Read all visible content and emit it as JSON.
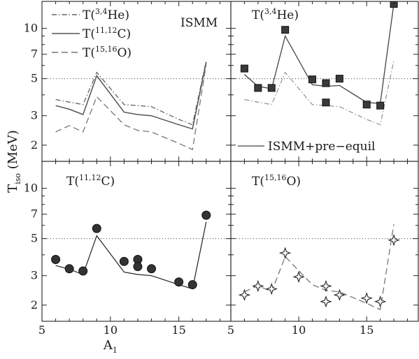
{
  "chart_data": {
    "type": "line",
    "layout": "2x2 panels, shared x and y axes, log y scale",
    "xlim": [
      5,
      18.8
    ],
    "ylim": [
      1.6,
      14.5
    ],
    "y_scale": "log",
    "x_ticks": [
      5,
      10,
      15
    ],
    "y_ticks": [
      2,
      3,
      5,
      7,
      10
    ],
    "xlabel": "A",
    "xlabel_sub": "1",
    "ylabel": "T",
    "ylabel_sub": "iso",
    "ylabel_units": " (MeV)",
    "reference_line": 5,
    "x": [
      6,
      7,
      8,
      9,
      11,
      12,
      13,
      15,
      16,
      17
    ],
    "model": {
      "He": [
        3.75,
        3.62,
        3.5,
        5.45,
        3.5,
        3.45,
        3.4,
        2.85,
        2.65,
        6.4
      ],
      "C": [
        3.45,
        3.28,
        3.05,
        5.2,
        3.15,
        3.05,
        3.0,
        2.65,
        2.5,
        6.3
      ],
      "O": [
        2.4,
        2.62,
        2.4,
        3.9,
        2.65,
        2.45,
        2.4,
        2.05,
        1.88,
        6.1
      ]
    },
    "preequil": {
      "He": [
        5.3,
        4.5,
        4.35,
        9.0,
        4.6,
        4.5,
        4.55,
        3.6,
        3.55,
        14.0
      ]
    },
    "panels": [
      {
        "id": "ismm",
        "label": "ISMM",
        "legend": [
          {
            "series": "He",
            "style": "dashdot",
            "pre": "T(",
            "sup": "3,4",
            "base": "He)"
          },
          {
            "series": "C",
            "style": "solid",
            "pre": "T(",
            "sup": "11,12",
            "base": "C)"
          },
          {
            "series": "O",
            "style": "dashed",
            "pre": "T(",
            "sup": "15,16",
            "base": "O)"
          }
        ]
      },
      {
        "id": "he",
        "title": {
          "pre": "T(",
          "sup": "3,4",
          "base": "He)"
        },
        "legend_label": "ISMM+pre−equil",
        "points": {
          "marker": "filled-square",
          "x": [
            6,
            7,
            8,
            9,
            11,
            12,
            12,
            13,
            15,
            16,
            17
          ],
          "y": [
            5.75,
            4.4,
            4.4,
            9.8,
            4.95,
            4.7,
            3.6,
            5.0,
            3.5,
            3.45,
            14.0
          ]
        }
      },
      {
        "id": "c",
        "title": {
          "pre": "T(",
          "sup": "11,12",
          "base": "C)"
        },
        "points": {
          "marker": "filled-circle",
          "x": [
            6,
            7,
            8,
            9,
            11,
            12,
            12,
            13,
            15,
            16,
            17
          ],
          "y": [
            3.75,
            3.3,
            3.2,
            5.75,
            3.65,
            3.75,
            3.4,
            3.3,
            2.75,
            2.65,
            6.9
          ]
        }
      },
      {
        "id": "o",
        "title": {
          "pre": "T(",
          "sup": "15,16",
          "base": "O)"
        },
        "points": {
          "marker": "open-star",
          "x": [
            6,
            7,
            8,
            9,
            10,
            12,
            12,
            13,
            15,
            16,
            17
          ],
          "y": [
            2.3,
            2.6,
            2.5,
            4.1,
            2.95,
            2.6,
            2.1,
            2.3,
            2.2,
            2.1,
            4.9
          ]
        }
      }
    ]
  }
}
